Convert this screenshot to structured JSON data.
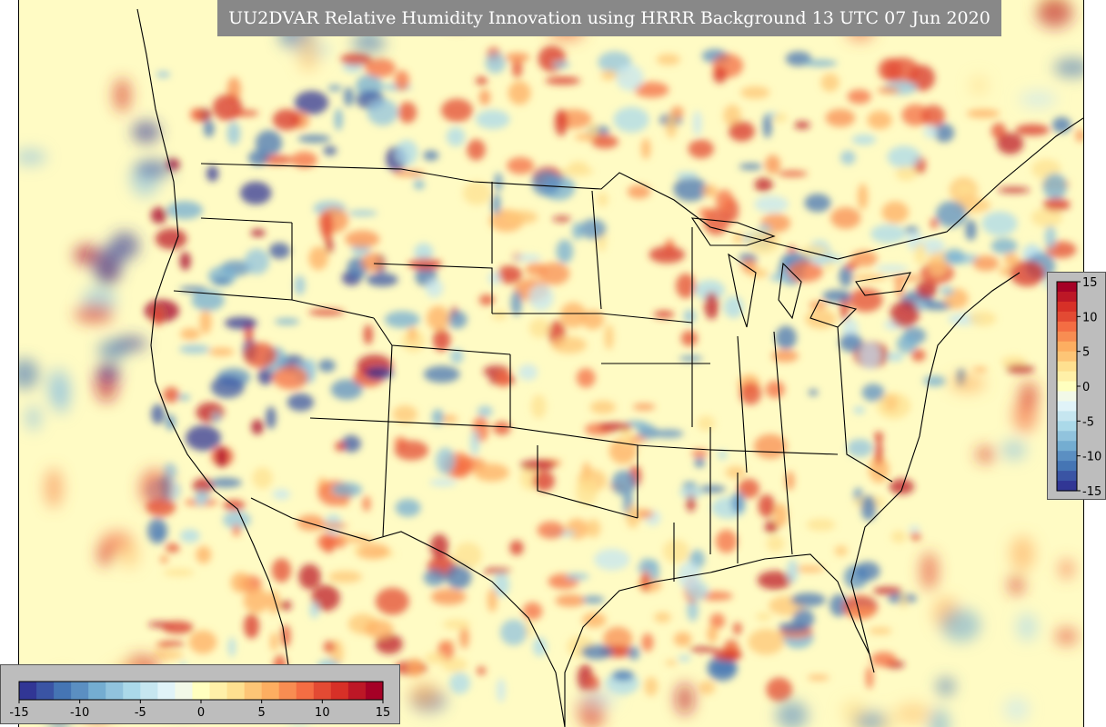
{
  "title": "UU2DVAR Relative Humidity Innovation using HRRR Background 13 UTC 07 Jun 2020",
  "colorbar": {
    "range": [
      -15,
      15
    ],
    "horizontal_ticks": [
      "-15",
      "-10",
      "-5",
      "0",
      "5",
      "10",
      "15"
    ],
    "vertical_ticks": [
      "15",
      "10",
      "5",
      "0",
      "-5",
      "-10",
      "-15"
    ],
    "colors": [
      "#313695",
      "#3a54a4",
      "#4575b4",
      "#5b8fc2",
      "#74add1",
      "#91c3dd",
      "#abd9e9",
      "#c6e6f0",
      "#e0f3f8",
      "#f2f9e8",
      "#ffffbf",
      "#fff0a8",
      "#fee090",
      "#fdc576",
      "#fdae61",
      "#f88d52",
      "#f46d43",
      "#e34a33",
      "#d73027",
      "#bd1726",
      "#a50026"
    ]
  },
  "map": {
    "background": "#fffbc4",
    "border_color": "#000000"
  }
}
